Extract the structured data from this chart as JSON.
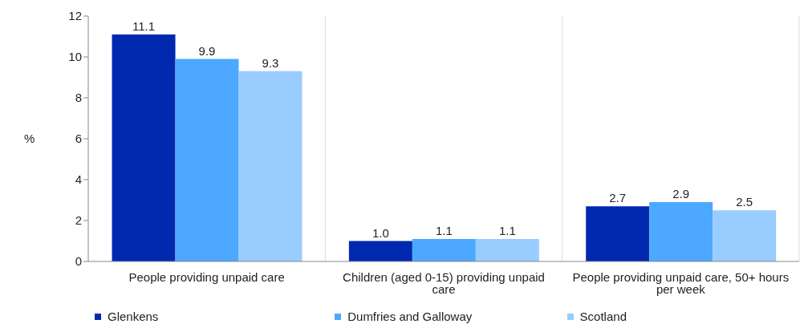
{
  "chart_data": {
    "type": "bar",
    "ylabel": "%",
    "categories": [
      "People providing unpaid care",
      "Children (aged 0-15) providing unpaid care",
      "People providing unpaid care, 50+ hours per week"
    ],
    "series": [
      {
        "name": "Glenkens",
        "color": "#0029b0",
        "values": [
          11.1,
          1.0,
          2.7
        ],
        "value_labels": [
          "11.1",
          "1.0",
          "2.7"
        ]
      },
      {
        "name": "Dumfries and Galloway",
        "color": "#4da8ff",
        "values": [
          9.9,
          1.1,
          2.9
        ],
        "value_labels": [
          "9.9",
          "1.1",
          "2.9"
        ]
      },
      {
        "name": "Scotland",
        "color": "#99ccff",
        "values": [
          9.3,
          1.1,
          2.5
        ],
        "value_labels": [
          "9.3",
          "1.1",
          "2.5"
        ]
      }
    ],
    "ylim": [
      0,
      12
    ],
    "yticks": [
      0,
      2,
      4,
      6,
      8,
      10,
      12
    ],
    "grid": "x",
    "legend": "bottom"
  }
}
